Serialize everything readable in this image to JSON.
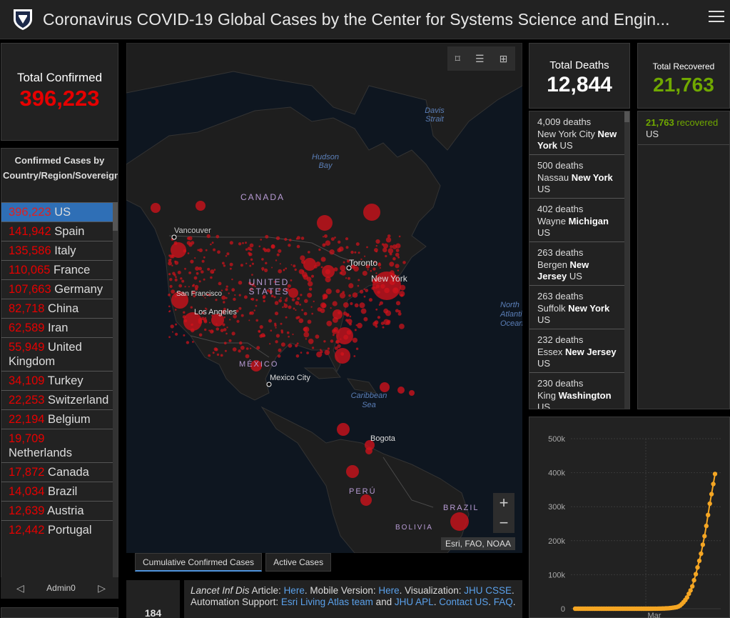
{
  "header": {
    "title": "Coronavirus COVID-19 Global Cases by the Center for Systems Science and Engin..."
  },
  "total_confirmed": {
    "label": "Total Confirmed",
    "value": "396,223"
  },
  "country_list": {
    "header": "Confirmed Cases by Country/Region/Sovereignty",
    "rows": [
      {
        "num": "396,223",
        "name": "US"
      },
      {
        "num": "141,942",
        "name": "Spain"
      },
      {
        "num": "135,586",
        "name": "Italy"
      },
      {
        "num": "110,065",
        "name": "France"
      },
      {
        "num": "107,663",
        "name": "Germany"
      },
      {
        "num": "82,718",
        "name": "China"
      },
      {
        "num": "62,589",
        "name": "Iran"
      },
      {
        "num": "55,949",
        "name": "United Kingdom"
      },
      {
        "num": "34,109",
        "name": "Turkey"
      },
      {
        "num": "22,253",
        "name": "Switzerland"
      },
      {
        "num": "22,194",
        "name": "Belgium"
      },
      {
        "num": "19,709",
        "name": "Netherlands"
      },
      {
        "num": "17,872",
        "name": "Canada"
      },
      {
        "num": "14,034",
        "name": "Brazil"
      },
      {
        "num": "12,639",
        "name": "Austria"
      },
      {
        "num": "12,442",
        "name": "Portugal"
      }
    ]
  },
  "pager": {
    "label": "Admin0"
  },
  "map": {
    "labels": {
      "canada": "CANADA",
      "us": "UNITED STATES",
      "mexico": "MÉXICO",
      "peru": "PERÚ",
      "brazil": "BRAZIL",
      "bolivia": "BOLIVIA",
      "davis": "Davis Strait",
      "hudson": "Hudson Bay",
      "caribbean": "Caribbean Sea",
      "atlantic": "North Atlantic Ocean",
      "vancouver": "Vancouver",
      "sf": "San Francisco",
      "la": "Los Angeles",
      "toronto": "Toronto",
      "newyork": "New York",
      "mexicocity": "Mexico City",
      "bogota": "Bogota"
    },
    "attribution": "Esri, FAO, NOAA",
    "zoom_in": "+",
    "zoom_out": "−"
  },
  "map_tabs": [
    "Cumulative Confirmed Cases",
    "Active Cases"
  ],
  "bottom_count": "184",
  "info": {
    "lancet": "Lancet Inf Dis",
    "t1": " Article: ",
    "here1": "Here",
    "t2": ". Mobile Version: ",
    "here2": "Here",
    "t3": ". Visualization: ",
    "jhu1": "JHU CSSE",
    "t4": ". Automation Support: ",
    "esri": "Esri Living Atlas team",
    "t5": " and ",
    "jhu2": "JHU APL",
    "t6": ". ",
    "contact": "Contact US",
    "t7": ". ",
    "faq": "FAQ",
    "t8": "."
  },
  "total_deaths": {
    "label": "Total Deaths",
    "value": "12,844"
  },
  "deaths_list": [
    {
      "count": "4,009 deaths",
      "place": "New York City",
      "state": "New York",
      "country": "US"
    },
    {
      "count": "500 deaths",
      "place": "Nassau",
      "state": "New York",
      "country": "US"
    },
    {
      "count": "402 deaths",
      "place": "Wayne",
      "state": "Michigan",
      "country": "US"
    },
    {
      "count": "263 deaths",
      "place": "Bergen",
      "state": "New Jersey",
      "country": "US"
    },
    {
      "count": "263 deaths",
      "place": "Suffolk",
      "state": "New York",
      "country": "US"
    },
    {
      "count": "232 deaths",
      "place": "Essex",
      "state": "New Jersey",
      "country": "US"
    },
    {
      "count": "230 deaths",
      "place": "King",
      "state": "Washington",
      "country": "US"
    }
  ],
  "total_recovered": {
    "label": "Total Recovered",
    "value": "21,763"
  },
  "recovered_list": [
    {
      "count": "21,763",
      "suffix": "recovered",
      "place": "US"
    }
  ],
  "colors": {
    "confirmed": "#e60000",
    "recovered": "#70a800",
    "line": "#f5a623",
    "selected": "#2f6fb6",
    "link": "#5aa0ea"
  },
  "chart_data": {
    "type": "line",
    "title": "",
    "xlabel": "Mar",
    "ylabel": "",
    "yticks": [
      "0",
      "100k",
      "200k",
      "300k",
      "400k",
      "500k"
    ],
    "ylim": [
      0,
      500000
    ],
    "series": [
      {
        "values": [
          1,
          1,
          1,
          2,
          2,
          5,
          5,
          5,
          5,
          5,
          6,
          6,
          8,
          8,
          8,
          11,
          11,
          11,
          11,
          12,
          12,
          13,
          13,
          13,
          14,
          14,
          15,
          15,
          15,
          15,
          15,
          15,
          15,
          15,
          35,
          35,
          35,
          53,
          57,
          60,
          62,
          62,
          64,
          75,
          100,
          124,
          158,
          221,
          319,
          435,
          541,
          704,
          994,
          1301,
          1697,
          2247,
          2943,
          3680,
          4663,
          6411,
          9197,
          13779,
          19273,
          25600,
          33276,
          43847,
          53740,
          65778,
          83836,
          101657,
          121478,
          140886,
          161807,
          188172,
          213372,
          243453,
          275586,
          308850,
          337072,
          366667,
          396223
        ]
      }
    ]
  }
}
